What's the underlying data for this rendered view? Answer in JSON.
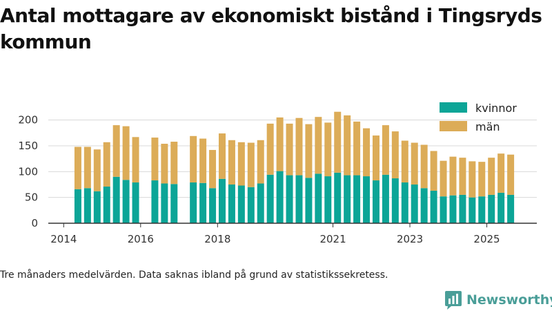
{
  "title": "Antal mottagare av ekonomiskt bistånd i Tingsryds kommun",
  "caption": "Tre månaders medelvärden. Data saknas ibland på grund av statistikssekretess.",
  "brand": {
    "name": "Newsworthy",
    "color": "#4a9e98",
    "icon": "bar-chart-logo-icon"
  },
  "colors": {
    "kvinnor": "#0ca597",
    "man": "#dcac58",
    "axis": "#333333",
    "grid": "#d8d8d8"
  },
  "chart_data": {
    "type": "bar",
    "stacked": true,
    "title": "Antal mottagare av ekonomiskt bistånd i Tingsryds kommun",
    "xlabel": "",
    "ylabel": "",
    "ylim": [
      0,
      225
    ],
    "yticks": [
      0,
      50,
      100,
      150,
      200
    ],
    "xlim": [
      2013.6,
      2026.3
    ],
    "xticks": [
      2014,
      2016,
      2018,
      2021,
      2023,
      2025
    ],
    "grid": "horizontal",
    "legend": "top-right",
    "x": [
      2014.37,
      2014.62,
      2014.87,
      2015.12,
      2015.37,
      2015.62,
      2015.87,
      2016.37,
      2016.62,
      2016.87,
      2017.37,
      2017.62,
      2017.87,
      2018.12,
      2018.37,
      2018.62,
      2018.87,
      2019.12,
      2019.37,
      2019.62,
      2019.87,
      2020.12,
      2020.37,
      2020.62,
      2020.87,
      2021.12,
      2021.37,
      2021.62,
      2021.87,
      2022.12,
      2022.37,
      2022.62,
      2022.87,
      2023.12,
      2023.37,
      2023.62,
      2023.87,
      2024.12,
      2024.37,
      2024.62,
      2024.87,
      2025.12,
      2025.37,
      2025.62
    ],
    "series": [
      {
        "name": "kvinnor",
        "values": [
          66,
          68,
          62,
          71,
          90,
          84,
          79,
          83,
          77,
          76,
          79,
          78,
          68,
          86,
          75,
          73,
          70,
          77,
          94,
          101,
          93,
          93,
          88,
          96,
          91,
          98,
          93,
          93,
          91,
          83,
          94,
          87,
          79,
          75,
          68,
          63,
          52,
          54,
          55,
          50,
          52,
          55,
          59,
          55
        ]
      },
      {
        "name": "män",
        "values": [
          82,
          80,
          81,
          86,
          100,
          104,
          88,
          83,
          77,
          82,
          90,
          86,
          74,
          88,
          86,
          84,
          86,
          84,
          99,
          104,
          100,
          111,
          104,
          110,
          104,
          118,
          116,
          104,
          93,
          87,
          96,
          91,
          81,
          81,
          84,
          77,
          69,
          75,
          72,
          70,
          67,
          72,
          76,
          78
        ]
      }
    ]
  }
}
